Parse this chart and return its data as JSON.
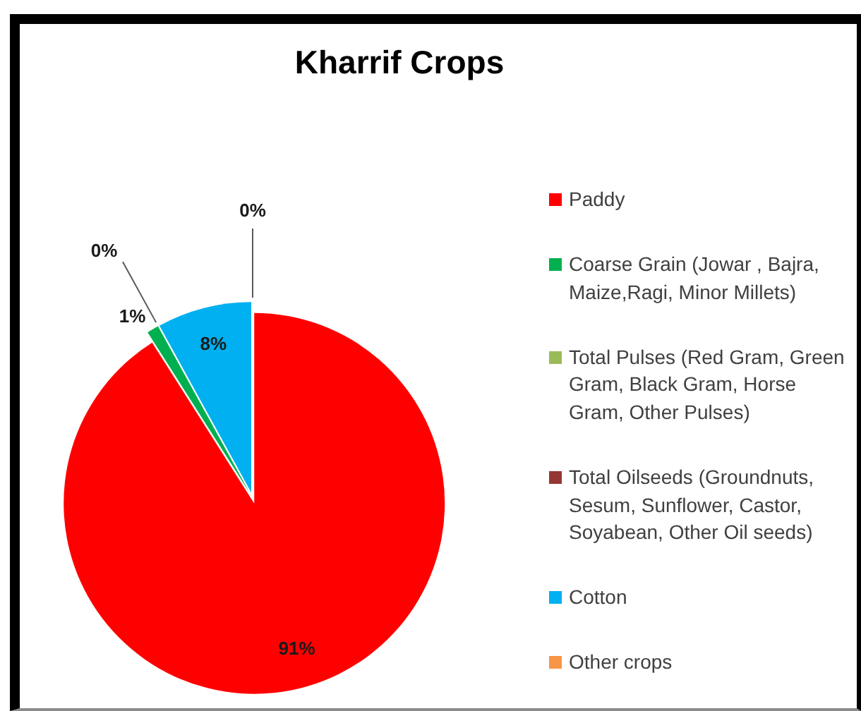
{
  "chart_data": {
    "type": "pie",
    "title": "Kharrif Crops",
    "categories": [
      "Paddy",
      "Coarse Grain (Jowar , Bajra, Maize,Ragi, Minor Millets)",
      "Total Pulses (Red Gram, Green Gram, Black Gram, Horse Gram, Other Pulses)",
      "Total Oilseeds (Groundnuts, Sesum, Sunflower, Castor, Soyabean, Other Oil seeds)",
      "Cotton",
      "Other crops"
    ],
    "values": [
      91,
      1,
      0,
      0,
      8,
      0
    ],
    "colors": [
      "#ff0000",
      "#00b050",
      "#9bbb59",
      "#953735",
      "#00b0f0",
      "#f79646"
    ],
    "value_labels": [
      "91%",
      "1%",
      "0%",
      null,
      "8%",
      "0%"
    ],
    "legend": "right"
  }
}
